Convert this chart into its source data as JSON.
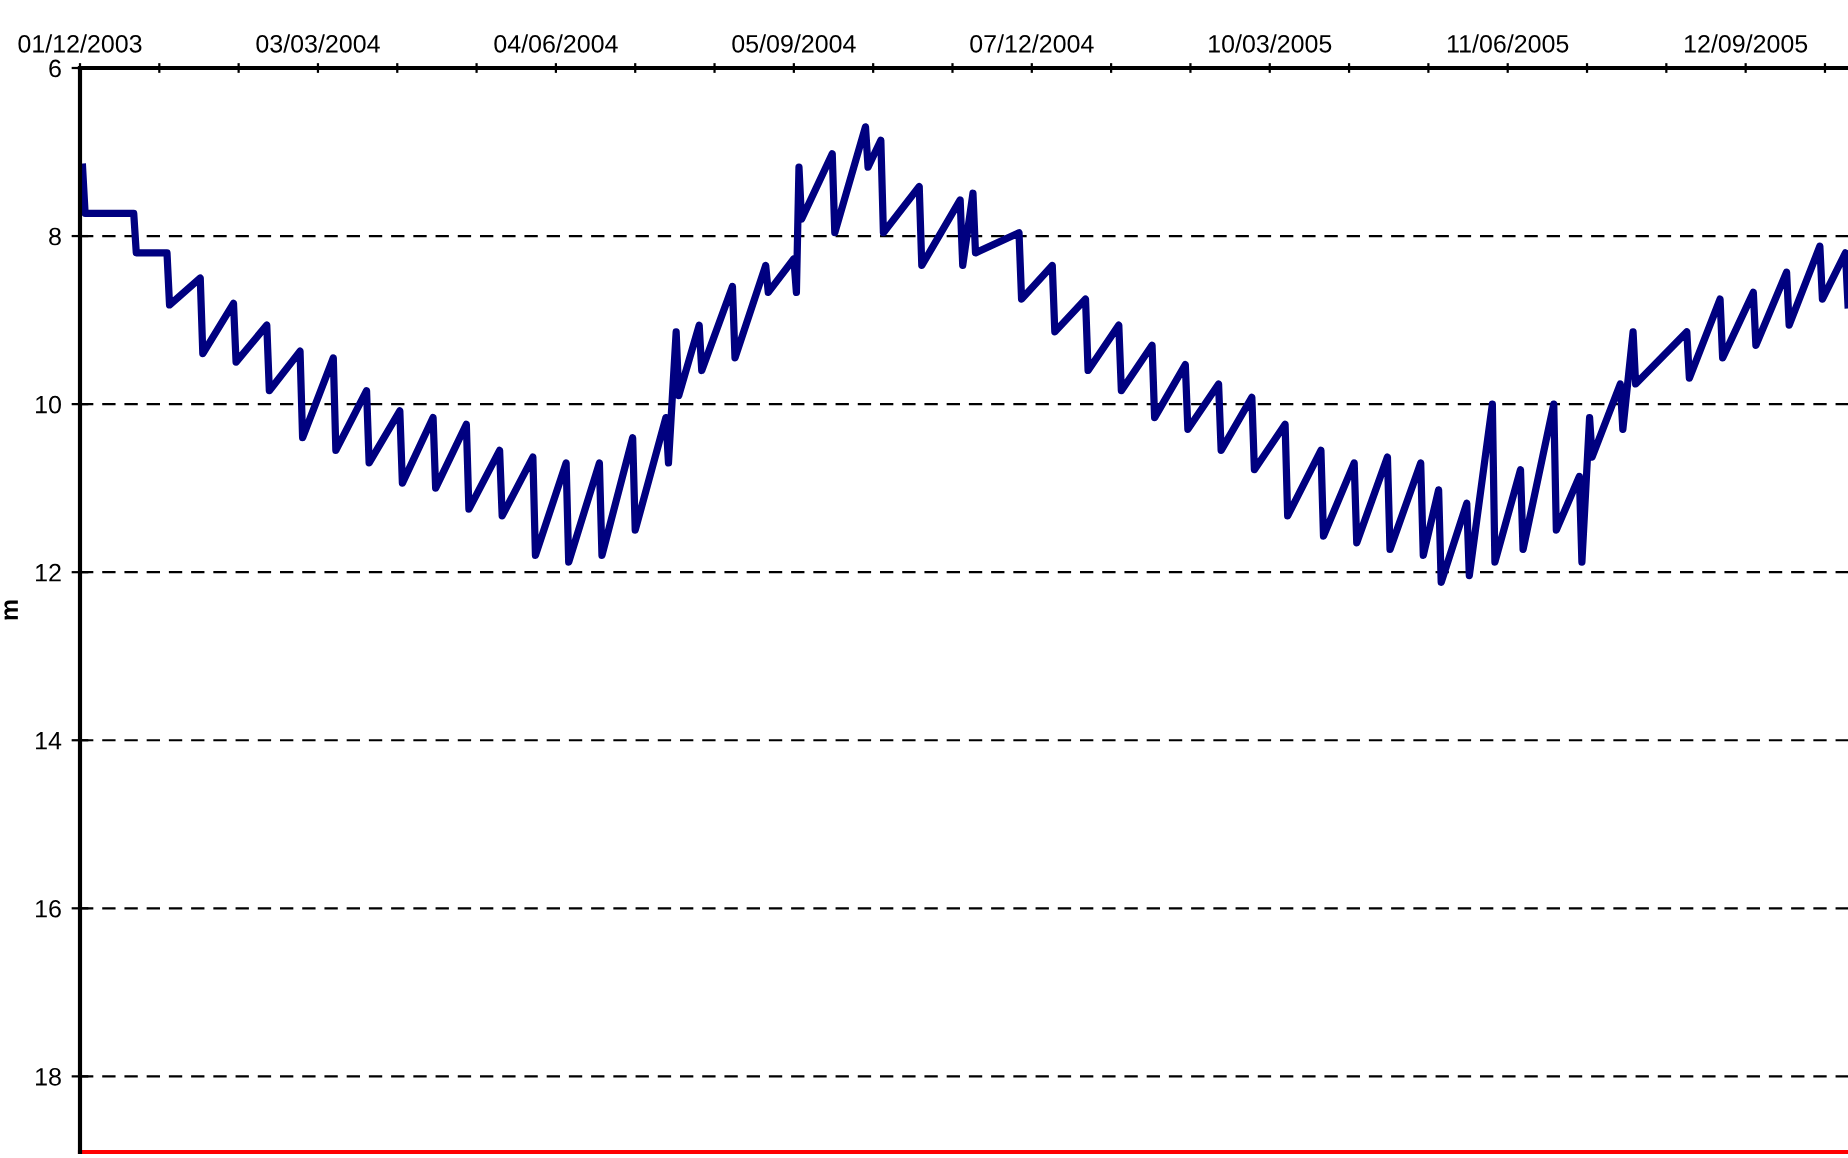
{
  "chart_data": {
    "type": "line",
    "ylabel": "m",
    "x": [
      "2003-12-02",
      "2003-12-03",
      "2003-12-22",
      "2003-12-23",
      "2004-01-04",
      "2004-01-05",
      "2004-01-17",
      "2004-01-18",
      "2004-01-30",
      "2004-01-31",
      "2004-02-12",
      "2004-02-13",
      "2004-02-25",
      "2004-02-26",
      "2004-03-09",
      "2004-03-10",
      "2004-03-22",
      "2004-03-23",
      "2004-04-04",
      "2004-04-05",
      "2004-04-17",
      "2004-04-18",
      "2004-04-30",
      "2004-05-01",
      "2004-05-13",
      "2004-05-14",
      "2004-05-26",
      "2004-05-27",
      "2004-06-08",
      "2004-06-09",
      "2004-06-21",
      "2004-06-22",
      "2004-07-04",
      "2004-07-05",
      "2004-07-17",
      "2004-07-18",
      "2004-07-21",
      "2004-07-22",
      "2004-07-30",
      "2004-07-31",
      "2004-08-12",
      "2004-08-13",
      "2004-08-25",
      "2004-08-26",
      "2004-09-05",
      "2004-09-06",
      "2004-09-07",
      "2004-09-08",
      "2004-09-20",
      "2004-09-21",
      "2004-10-03",
      "2004-10-04",
      "2004-10-09",
      "2004-10-10",
      "2004-10-24",
      "2004-10-25",
      "2004-11-09",
      "2004-11-10",
      "2004-11-14",
      "2004-11-15",
      "2004-12-02",
      "2004-12-03",
      "2004-12-15",
      "2004-12-16",
      "2004-12-28",
      "2004-12-29",
      "2005-01-10",
      "2005-01-11",
      "2005-01-23",
      "2005-01-24",
      "2005-02-05",
      "2005-02-06",
      "2005-02-18",
      "2005-02-19",
      "2005-03-03",
      "2005-03-04",
      "2005-03-16",
      "2005-03-17",
      "2005-03-30",
      "2005-03-31",
      "2005-04-12",
      "2005-04-13",
      "2005-04-25",
      "2005-04-26",
      "2005-05-08",
      "2005-05-09",
      "2005-05-15",
      "2005-05-16",
      "2005-05-26",
      "2005-05-27",
      "2005-06-05",
      "2005-06-06",
      "2005-06-16",
      "2005-06-17",
      "2005-06-29",
      "2005-06-30",
      "2005-07-09",
      "2005-07-10",
      "2005-07-13",
      "2005-07-14",
      "2005-07-25",
      "2005-07-26",
      "2005-07-30",
      "2005-07-31",
      "2005-08-20",
      "2005-08-21",
      "2005-09-02",
      "2005-09-03",
      "2005-09-15",
      "2005-09-16",
      "2005-09-28",
      "2005-09-29",
      "2005-10-11",
      "2005-10-12",
      "2005-10-21",
      "2005-10-22"
    ],
    "series": [
      {
        "color": "#000080",
        "values": [
          7.18,
          7.73,
          7.73,
          8.2,
          8.2,
          8.82,
          8.5,
          9.4,
          8.8,
          9.5,
          9.06,
          9.84,
          9.37,
          10.4,
          9.45,
          10.55,
          9.84,
          10.7,
          10.08,
          10.94,
          10.16,
          11.0,
          10.24,
          11.25,
          10.55,
          11.33,
          10.63,
          11.8,
          10.7,
          11.88,
          10.7,
          11.8,
          10.4,
          11.5,
          10.16,
          10.7,
          9.14,
          9.9,
          9.06,
          9.6,
          8.6,
          9.45,
          8.35,
          8.67,
          8.27,
          8.67,
          7.18,
          7.8,
          7.02,
          7.96,
          6.7,
          7.18,
          6.86,
          7.96,
          7.41,
          8.35,
          7.57,
          8.35,
          7.49,
          8.2,
          7.96,
          8.75,
          8.35,
          9.14,
          8.75,
          9.6,
          9.06,
          9.84,
          9.3,
          10.16,
          9.53,
          10.3,
          9.76,
          10.55,
          9.92,
          10.78,
          10.24,
          11.33,
          10.55,
          11.57,
          10.7,
          11.65,
          10.63,
          11.73,
          10.7,
          11.8,
          11.02,
          12.12,
          11.18,
          12.04,
          10.0,
          11.88,
          10.78,
          11.73,
          10.0,
          11.5,
          10.86,
          11.88,
          10.16,
          10.63,
          9.76,
          10.3,
          9.14,
          9.76,
          9.14,
          9.69,
          8.75,
          9.45,
          8.67,
          9.3,
          8.43,
          9.06,
          8.12,
          8.75,
          8.2,
          8.82
        ]
      }
    ],
    "xlim": [
      "2003-12-01",
      "2005-10-22"
    ],
    "xticks": [
      {
        "value": "2003-12-01",
        "label": "01/12/2003"
      },
      {
        "value": "2004-01-01",
        "label": null
      },
      {
        "value": "2004-02-01",
        "label": null
      },
      {
        "value": "2004-03-03",
        "label": "03/03/2004"
      },
      {
        "value": "2004-04-03",
        "label": null
      },
      {
        "value": "2004-05-04",
        "label": null
      },
      {
        "value": "2004-06-04",
        "label": "04/06/2004"
      },
      {
        "value": "2004-07-05",
        "label": null
      },
      {
        "value": "2004-08-05",
        "label": null
      },
      {
        "value": "2004-09-05",
        "label": "05/09/2004"
      },
      {
        "value": "2004-10-06",
        "label": null
      },
      {
        "value": "2004-11-06",
        "label": null
      },
      {
        "value": "2004-12-07",
        "label": "07/12/2004"
      },
      {
        "value": "2005-01-07",
        "label": null
      },
      {
        "value": "2005-02-07",
        "label": null
      },
      {
        "value": "2005-03-10",
        "label": "10/03/2005"
      },
      {
        "value": "2005-04-10",
        "label": null
      },
      {
        "value": "2005-05-11",
        "label": null
      },
      {
        "value": "2005-06-11",
        "label": "11/06/2005"
      },
      {
        "value": "2005-07-12",
        "label": null
      },
      {
        "value": "2005-08-12",
        "label": null
      },
      {
        "value": "2005-09-12",
        "label": "12/09/2005"
      },
      {
        "value": "2005-10-13",
        "label": null
      }
    ],
    "ylim": [
      18.9,
      6
    ],
    "yticks": [
      6,
      8,
      10,
      12,
      14,
      16,
      18
    ],
    "grid": "y",
    "marker": "none",
    "line_style": "solid",
    "ref_lines": [
      {
        "axis": "y",
        "value": 18.9,
        "color": "#ff0000",
        "line_style": "solid"
      }
    ]
  }
}
